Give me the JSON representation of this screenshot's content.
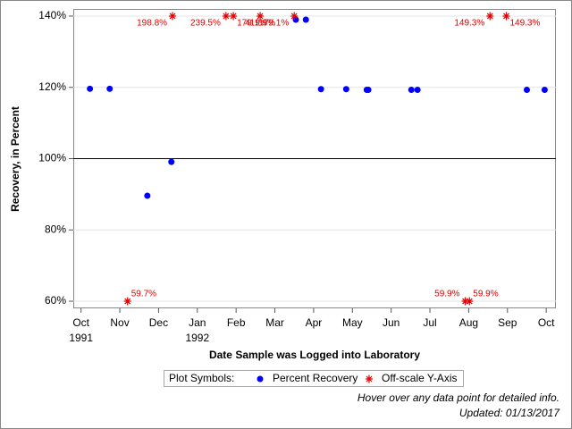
{
  "chart_data": {
    "type": "scatter",
    "xlabel": "Date Sample was Logged into Laboratory",
    "ylabel": "Recovery, in Percent",
    "xlim": [
      -0.2,
      12.25
    ],
    "ylim": [
      58,
      142
    ],
    "xticks": [
      {
        "value": 0,
        "label": "Oct"
      },
      {
        "value": 1,
        "label": "Nov"
      },
      {
        "value": 2,
        "label": "Dec"
      },
      {
        "value": 3,
        "label": "Jan"
      },
      {
        "value": 4,
        "label": "Feb"
      },
      {
        "value": 5,
        "label": "Mar"
      },
      {
        "value": 6,
        "label": "Apr"
      },
      {
        "value": 7,
        "label": "May"
      },
      {
        "value": 8,
        "label": "Jun"
      },
      {
        "value": 9,
        "label": "Jul"
      },
      {
        "value": 10,
        "label": "Aug"
      },
      {
        "value": 11,
        "label": "Sep"
      },
      {
        "value": 12,
        "label": "Oct"
      }
    ],
    "year_labels": [
      {
        "value": 0,
        "label": "1991"
      },
      {
        "value": 3,
        "label": "1992"
      }
    ],
    "yticks": [
      {
        "value": 60,
        "label": "60%"
      },
      {
        "value": 80,
        "label": "80%"
      },
      {
        "value": 100,
        "label": "100%"
      },
      {
        "value": 120,
        "label": "120%"
      },
      {
        "value": 140,
        "label": "140%"
      }
    ],
    "reference_line": 100,
    "grid": true,
    "series": [
      {
        "name": "Percent Recovery",
        "color": "#0000ff",
        "marker": "dot",
        "x": [
          0.23,
          0.74,
          1.71,
          2.33,
          5.54,
          5.8,
          6.19,
          6.84,
          7.37,
          7.41,
          8.52,
          8.68,
          11.5,
          11.96
        ],
        "values": [
          119.6,
          119.6,
          89.6,
          99.1,
          139,
          139,
          119.5,
          119.5,
          119.3,
          119.3,
          119.3,
          119.3,
          119.3,
          119.3
        ]
      },
      {
        "name": "Off-scale Y-Axis",
        "color": "#e00000",
        "marker": "asterisk",
        "x": [
          1.2,
          2.36,
          3.74,
          3.93,
          4.62,
          5.5,
          9.91,
          10.02,
          10.55,
          10.97
        ],
        "values": [
          59.7,
          198.8,
          239.5,
          179.1,
          419.9,
          179.1,
          59.9,
          59.9,
          149.3,
          149.3
        ],
        "value_labels": [
          "59.7%",
          "198.8%",
          "239.5%",
          "179.1%",
          "419.9%",
          "179.1%",
          "59.9%",
          "59.9%",
          "149.3%",
          "149.3%"
        ]
      }
    ],
    "legend_title": "Plot Symbols:",
    "notes": [
      "Hover over any data point for detailed info.",
      "Updated: 01/13/2017"
    ]
  }
}
